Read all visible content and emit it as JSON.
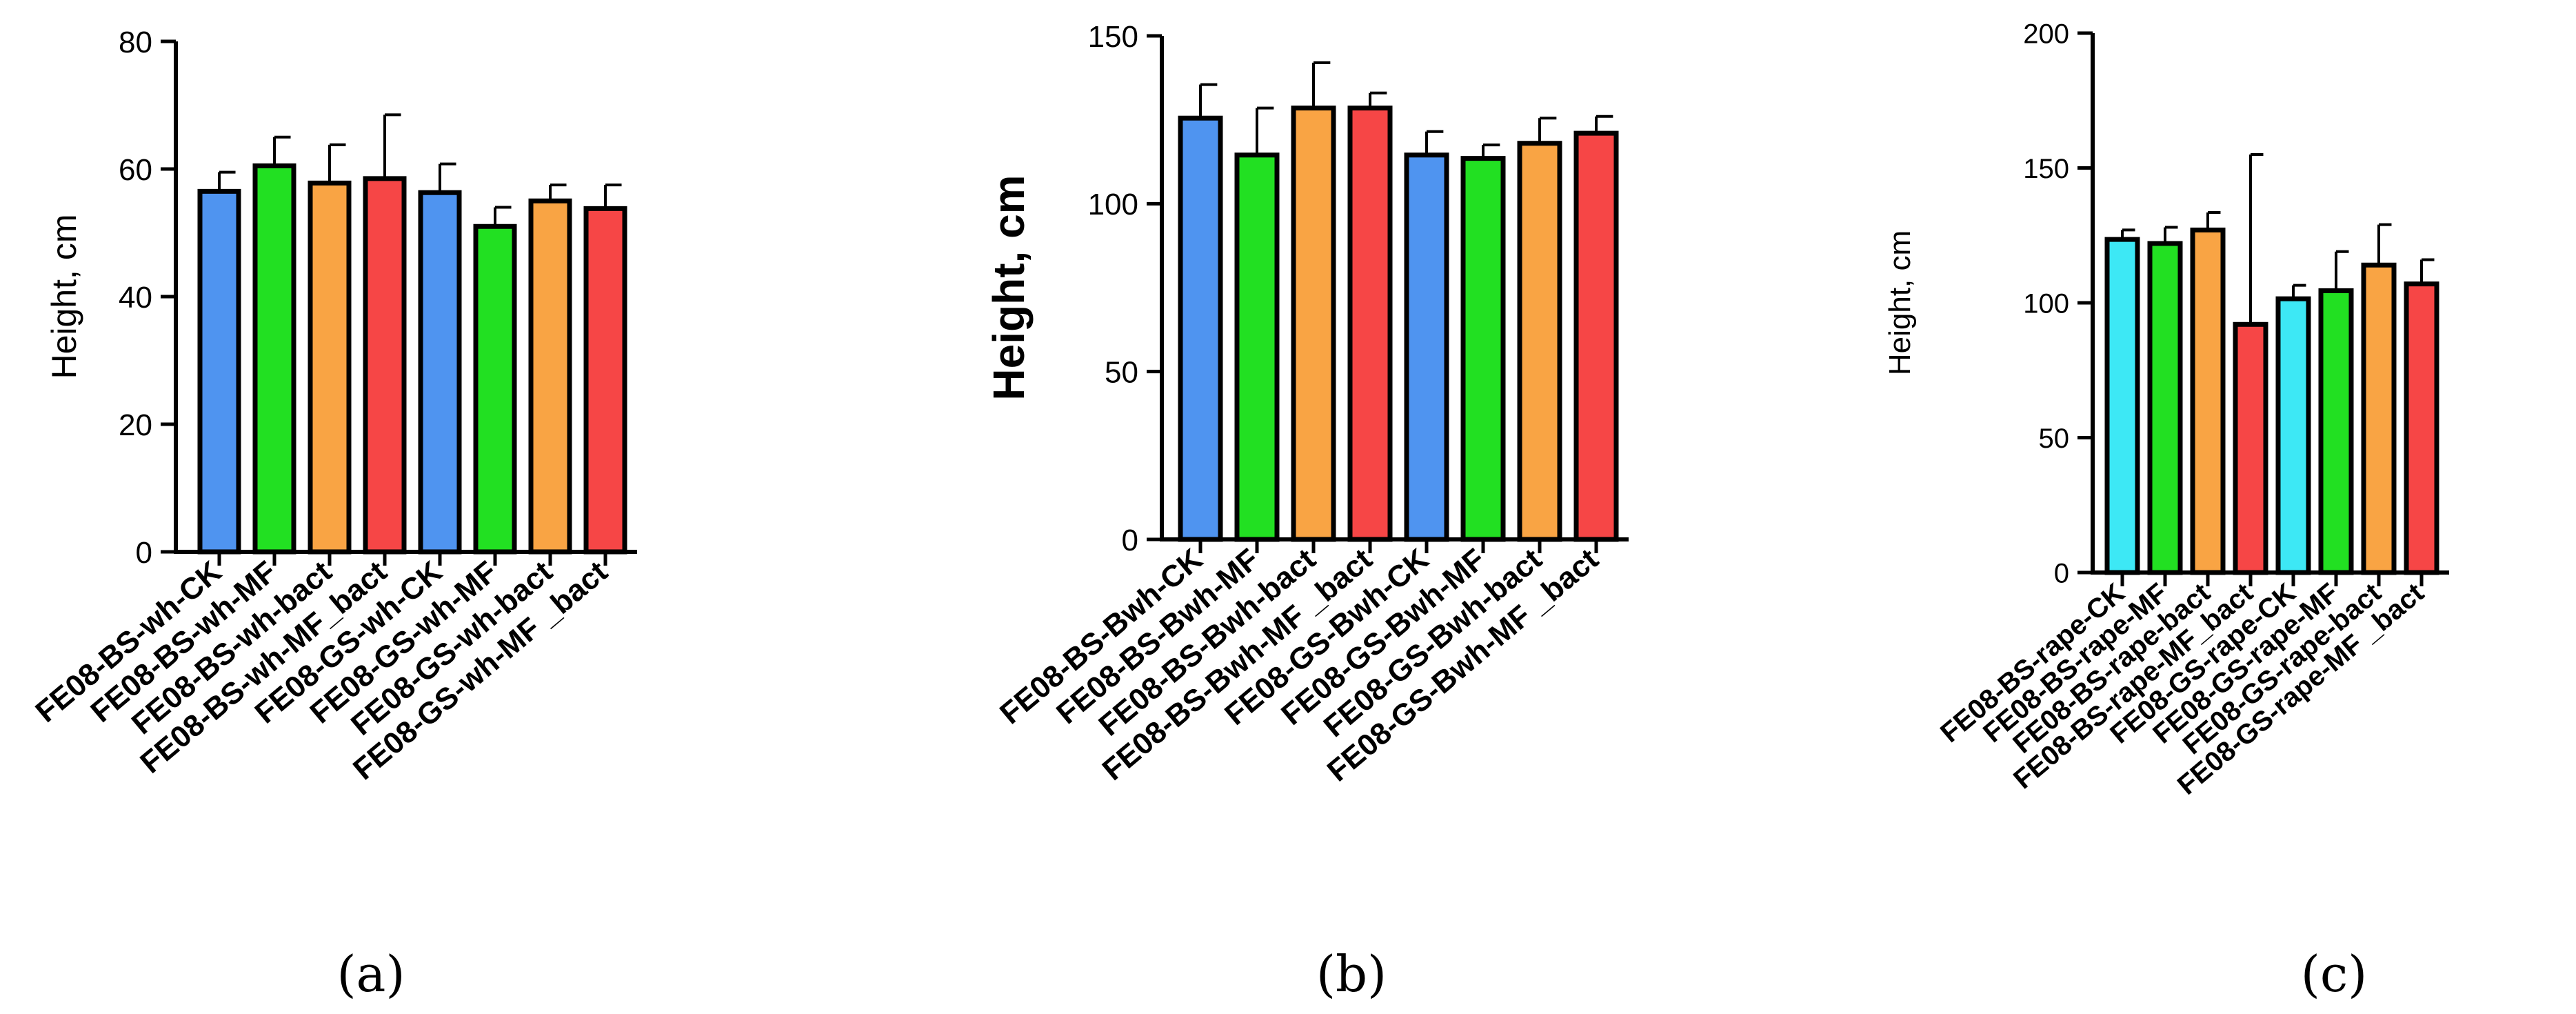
{
  "chart_data": [
    {
      "type": "bar",
      "panel_label": "(a)",
      "ylabel": "Height, cm",
      "ylabel_bold": false,
      "ylim": [
        0,
        80
      ],
      "yticks": [
        0,
        20,
        40,
        60,
        80
      ],
      "categories": [
        "FE08-BS-wh-CK",
        "FE08-BS-wh-MF",
        "FE08-BS-wh-bact",
        "FE08-BS-wh-MF_bact",
        "FE08-GS-wh-CK",
        "FE08-GS-wh-MF",
        "FE08-GS-wh-bact",
        "FE08-GS-wh-MF _bact"
      ],
      "values": [
        56.5,
        60.5,
        57.8,
        58.5,
        56.3,
        51.0,
        55.0,
        53.8
      ],
      "errors": [
        3.0,
        4.5,
        6.0,
        10.0,
        4.5,
        3.0,
        2.5,
        3.7
      ],
      "colors": [
        "#4f94f0",
        "#22e022",
        "#f9a444",
        "#f64646",
        "#4f94f0",
        "#22e022",
        "#f9a444",
        "#f64646"
      ]
    },
    {
      "type": "bar",
      "panel_label": "(b)",
      "ylabel": "Height, cm",
      "ylabel_bold": true,
      "ylim": [
        0,
        150
      ],
      "yticks": [
        0,
        50,
        100,
        150
      ],
      "categories": [
        "FE08-BS-Bwh-CK",
        "FE08-BS-Bwh-MF",
        "FE08-BS-Bwh-bact",
        "FE08-BS-Bwh-MF _bact",
        "FE08-GS-Bwh-CK",
        "FE08-GS-Bwh-MF",
        "FE08-GS-Bwh-bact",
        "FE08-GS-Bwh-MF _bact"
      ],
      "values": [
        125.5,
        114.5,
        128.5,
        128.5,
        114.5,
        113.5,
        118.0,
        121.0
      ],
      "errors": [
        10.0,
        14.0,
        13.5,
        4.5,
        7.0,
        4.0,
        7.5,
        5.0
      ],
      "colors": [
        "#4f94f0",
        "#22e022",
        "#f9a444",
        "#f64646",
        "#4f94f0",
        "#22e022",
        "#f9a444",
        "#f64646"
      ]
    },
    {
      "type": "bar",
      "panel_label": "(c)",
      "ylabel": "Height, cm",
      "ylabel_bold": false,
      "ylim": [
        0,
        200
      ],
      "yticks": [
        0,
        50,
        100,
        150,
        200
      ],
      "categories": [
        "FE08-BS-rape-CK",
        "FE08-BS-rape-MF",
        "FE08-BS-rape-bact",
        "FE08-BS-rape-MF_bact",
        "FE08-GS-rape-CK",
        "FE08-GS-rape-MF",
        "FE08-GS-rape-bact",
        "FE08-GS-rape-MF _bact"
      ],
      "values": [
        123.5,
        122.0,
        127.0,
        92.0,
        101.5,
        104.5,
        114.0,
        107.0
      ],
      "errors": [
        3.5,
        6.0,
        6.5,
        63.0,
        5.0,
        14.5,
        15.0,
        9.0
      ],
      "colors": [
        "#3de8f5",
        "#22e022",
        "#f9a444",
        "#f64646",
        "#3de8f5",
        "#22e022",
        "#f9a444",
        "#f64646"
      ]
    }
  ]
}
